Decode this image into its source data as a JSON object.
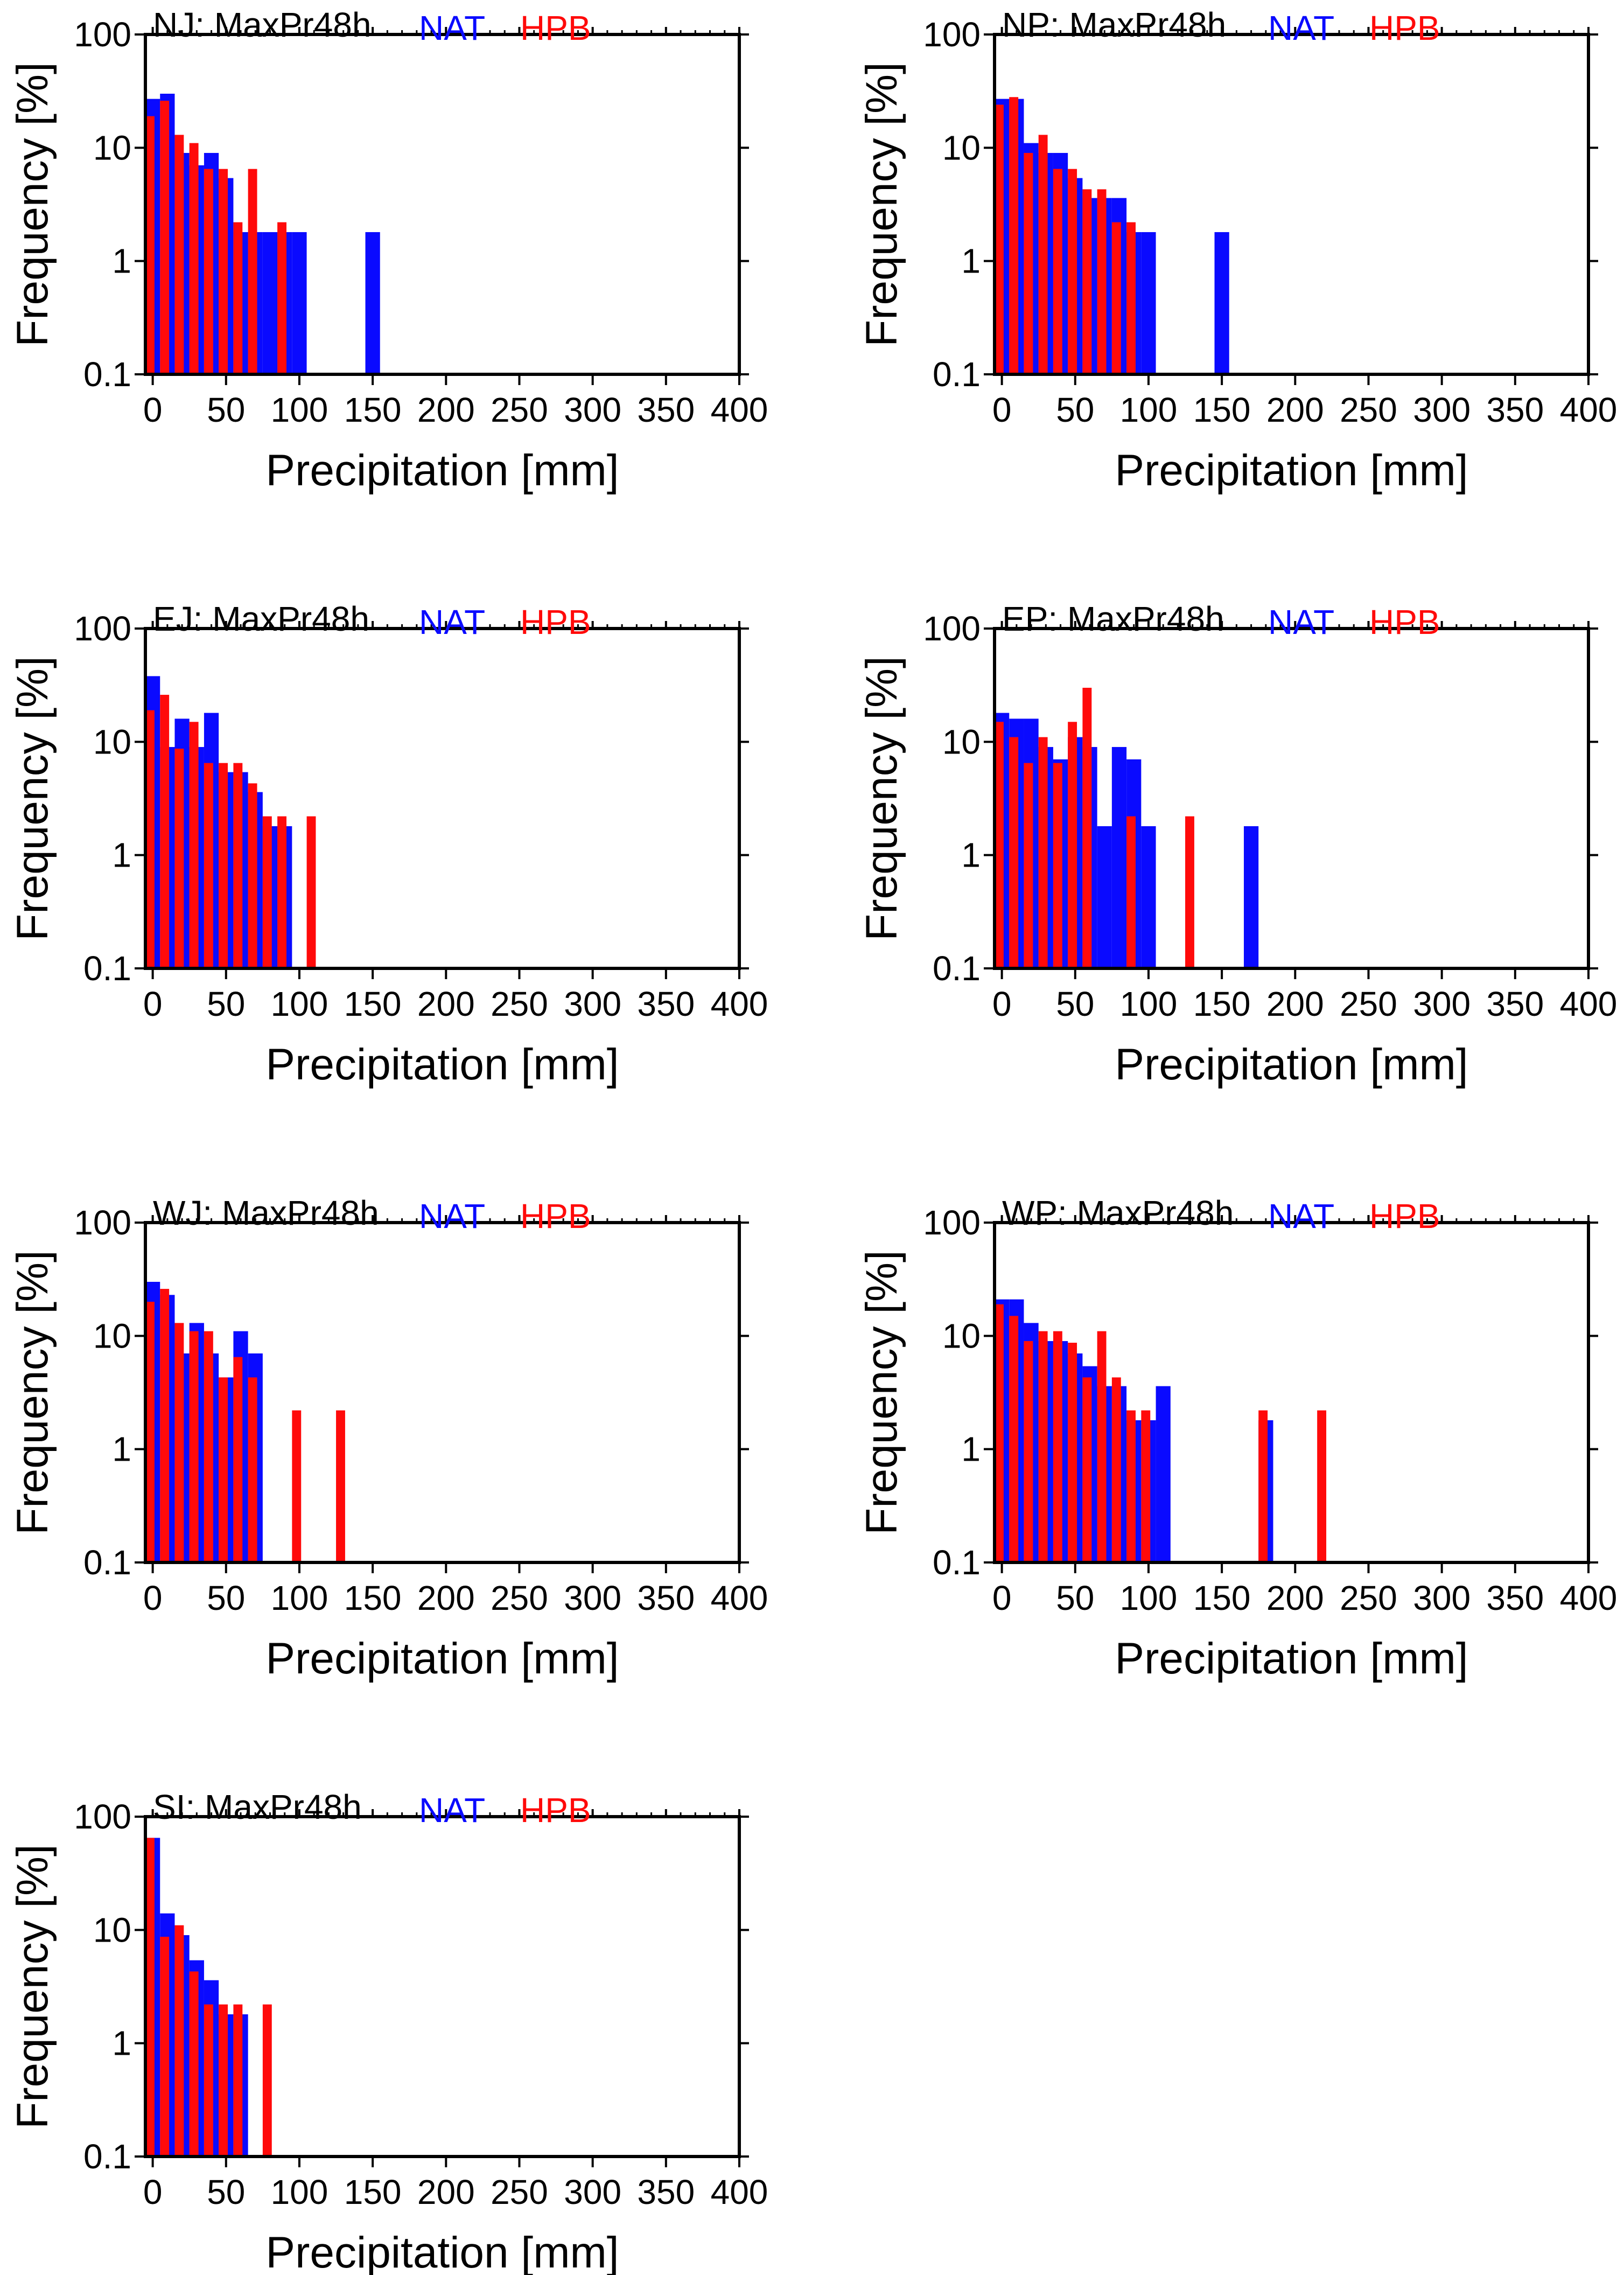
{
  "colors": {
    "NAT": "#0a0aff",
    "HPB": "#ff0a0a",
    "axis": "#000000",
    "background": "#ffffff"
  },
  "chart_data": [
    {
      "type": "bar",
      "panel": "NJ",
      "title": "NJ: MaxPr48h",
      "xlabel": "Precipitation [mm]",
      "ylabel": "Frequency [%]",
      "xlim": [
        -5,
        400
      ],
      "ylim": [
        0.1,
        100
      ],
      "yscale": "log",
      "bin_width": 10,
      "xticks": [
        "0",
        "50",
        "100",
        "150",
        "200",
        "250",
        "300",
        "350",
        "400"
      ],
      "yticks": [
        "0.1",
        "1",
        "10",
        "100"
      ],
      "legend_position": "top",
      "series": [
        {
          "name": "NAT",
          "color": "#0a0aff",
          "points": [
            [
              0,
              27
            ],
            [
              10,
              30
            ],
            [
              20,
              9
            ],
            [
              30,
              7
            ],
            [
              40,
              9
            ],
            [
              50,
              5.4
            ],
            [
              60,
              1.8
            ],
            [
              70,
              1.8
            ],
            [
              80,
              1.8
            ],
            [
              90,
              1.8
            ],
            [
              100,
              1.8
            ],
            [
              150,
              1.8
            ]
          ]
        },
        {
          "name": "HPB",
          "color": "#ff0a0a",
          "points": [
            [
              0,
              19
            ],
            [
              10,
              26
            ],
            [
              20,
              13
            ],
            [
              30,
              11
            ],
            [
              40,
              6.5
            ],
            [
              50,
              6.5
            ],
            [
              60,
              2.2
            ],
            [
              70,
              6.5
            ],
            [
              90,
              2.2
            ]
          ]
        }
      ]
    },
    {
      "type": "bar",
      "panel": "NP",
      "title": "NP: MaxPr48h",
      "xlabel": "Precipitation [mm]",
      "ylabel": "Frequency [%]",
      "xlim": [
        -5,
        400
      ],
      "ylim": [
        0.1,
        100
      ],
      "yscale": "log",
      "bin_width": 10,
      "xticks": [
        "0",
        "50",
        "100",
        "150",
        "200",
        "250",
        "300",
        "350",
        "400"
      ],
      "yticks": [
        "0.1",
        "1",
        "10",
        "100"
      ],
      "legend_position": "top",
      "series": [
        {
          "name": "NAT",
          "color": "#0a0aff",
          "points": [
            [
              0,
              27
            ],
            [
              10,
              27
            ],
            [
              20,
              11
            ],
            [
              30,
              9
            ],
            [
              40,
              9
            ],
            [
              50,
              5.4
            ],
            [
              60,
              3.6
            ],
            [
              70,
              3.6
            ],
            [
              80,
              3.6
            ],
            [
              90,
              1.8
            ],
            [
              100,
              1.8
            ],
            [
              150,
              1.8
            ]
          ]
        },
        {
          "name": "HPB",
          "color": "#ff0a0a",
          "points": [
            [
              0,
              24
            ],
            [
              10,
              28
            ],
            [
              20,
              9
            ],
            [
              30,
              13
            ],
            [
              40,
              6.5
            ],
            [
              50,
              6.5
            ],
            [
              60,
              4.3
            ],
            [
              70,
              4.3
            ],
            [
              80,
              2.2
            ],
            [
              90,
              2.2
            ]
          ]
        }
      ]
    },
    {
      "type": "bar",
      "panel": "EJ",
      "title": "EJ: MaxPr48h",
      "xlabel": "Precipitation [mm]",
      "ylabel": "Frequency [%]",
      "xlim": [
        -5,
        400
      ],
      "ylim": [
        0.1,
        100
      ],
      "yscale": "log",
      "bin_width": 10,
      "xticks": [
        "0",
        "50",
        "100",
        "150",
        "200",
        "250",
        "300",
        "350",
        "400"
      ],
      "yticks": [
        "0.1",
        "1",
        "10",
        "100"
      ],
      "legend_position": "top",
      "series": [
        {
          "name": "NAT",
          "color": "#0a0aff",
          "points": [
            [
              0,
              38
            ],
            [
              10,
              9
            ],
            [
              20,
              16
            ],
            [
              30,
              9
            ],
            [
              40,
              18
            ],
            [
              50,
              5.4
            ],
            [
              60,
              5.4
            ],
            [
              70,
              3.6
            ],
            [
              80,
              1.8
            ],
            [
              90,
              1.8
            ]
          ]
        },
        {
          "name": "HPB",
          "color": "#ff0a0a",
          "points": [
            [
              0,
              19
            ],
            [
              10,
              26
            ],
            [
              20,
              8.7
            ],
            [
              30,
              15
            ],
            [
              40,
              6.5
            ],
            [
              50,
              6.5
            ],
            [
              60,
              6.5
            ],
            [
              70,
              4.3
            ],
            [
              80,
              2.2
            ],
            [
              90,
              2.2
            ],
            [
              110,
              2.2
            ]
          ]
        }
      ]
    },
    {
      "type": "bar",
      "panel": "EP",
      "title": "EP: MaxPr48h",
      "xlabel": "Precipitation [mm]",
      "ylabel": "Frequency [%]",
      "xlim": [
        -5,
        400
      ],
      "ylim": [
        0.1,
        100
      ],
      "yscale": "log",
      "bin_width": 10,
      "xticks": [
        "0",
        "50",
        "100",
        "150",
        "200",
        "250",
        "300",
        "350",
        "400"
      ],
      "yticks": [
        "0.1",
        "1",
        "10",
        "100"
      ],
      "legend_position": "top",
      "series": [
        {
          "name": "NAT",
          "color": "#0a0aff",
          "points": [
            [
              0,
              18
            ],
            [
              10,
              16
            ],
            [
              20,
              16
            ],
            [
              30,
              9
            ],
            [
              40,
              7
            ],
            [
              50,
              11
            ],
            [
              60,
              9
            ],
            [
              70,
              1.8
            ],
            [
              80,
              9
            ],
            [
              90,
              7
            ],
            [
              100,
              1.8
            ],
            [
              170,
              1.8
            ]
          ]
        },
        {
          "name": "HPB",
          "color": "#ff0a0a",
          "points": [
            [
              0,
              15
            ],
            [
              10,
              11
            ],
            [
              20,
              6.5
            ],
            [
              30,
              11
            ],
            [
              40,
              6.5
            ],
            [
              50,
              15
            ],
            [
              60,
              30
            ],
            [
              90,
              2.2
            ],
            [
              130,
              2.2
            ]
          ]
        }
      ]
    },
    {
      "type": "bar",
      "panel": "WJ",
      "title": "WJ: MaxPr48h",
      "xlabel": "Precipitation [mm]",
      "ylabel": "Frequency [%]",
      "xlim": [
        -5,
        400
      ],
      "ylim": [
        0.1,
        100
      ],
      "yscale": "log",
      "bin_width": 10,
      "xticks": [
        "0",
        "50",
        "100",
        "150",
        "200",
        "250",
        "300",
        "350",
        "400"
      ],
      "yticks": [
        "0.1",
        "1",
        "10",
        "100"
      ],
      "legend_position": "top",
      "series": [
        {
          "name": "NAT",
          "color": "#0a0aff",
          "points": [
            [
              0,
              30
            ],
            [
              10,
              23
            ],
            [
              20,
              7
            ],
            [
              30,
              13
            ],
            [
              40,
              7
            ],
            [
              50,
              4.3
            ],
            [
              60,
              11
            ],
            [
              70,
              7
            ]
          ]
        },
        {
          "name": "HPB",
          "color": "#ff0a0a",
          "points": [
            [
              0,
              20
            ],
            [
              10,
              26
            ],
            [
              20,
              13
            ],
            [
              30,
              11
            ],
            [
              40,
              11
            ],
            [
              50,
              4.3
            ],
            [
              60,
              6.5
            ],
            [
              70,
              4.3
            ],
            [
              100,
              2.2
            ],
            [
              130,
              2.2
            ]
          ]
        }
      ]
    },
    {
      "type": "bar",
      "panel": "WP",
      "title": "WP: MaxPr48h",
      "xlabel": "Precipitation [mm]",
      "ylabel": "Frequency [%]",
      "xlim": [
        -5,
        400
      ],
      "ylim": [
        0.1,
        100
      ],
      "yscale": "log",
      "bin_width": 10,
      "xticks": [
        "0",
        "50",
        "100",
        "150",
        "200",
        "250",
        "300",
        "350",
        "400"
      ],
      "yticks": [
        "0.1",
        "1",
        "10",
        "100"
      ],
      "legend_position": "top",
      "series": [
        {
          "name": "NAT",
          "color": "#0a0aff",
          "points": [
            [
              0,
              21
            ],
            [
              10,
              21
            ],
            [
              20,
              13
            ],
            [
              30,
              9
            ],
            [
              40,
              9
            ],
            [
              50,
              7
            ],
            [
              60,
              5.4
            ],
            [
              70,
              3.6
            ],
            [
              80,
              3.6
            ],
            [
              90,
              1.8
            ],
            [
              100,
              1.8
            ],
            [
              110,
              3.6
            ],
            [
              180,
              1.8
            ]
          ]
        },
        {
          "name": "HPB",
          "color": "#ff0a0a",
          "points": [
            [
              0,
              19
            ],
            [
              10,
              15
            ],
            [
              20,
              9
            ],
            [
              30,
              11
            ],
            [
              40,
              11
            ],
            [
              50,
              8.7
            ],
            [
              60,
              4.3
            ],
            [
              70,
              11
            ],
            [
              80,
              4.3
            ],
            [
              90,
              2.2
            ],
            [
              100,
              2.2
            ],
            [
              180,
              2.2
            ],
            [
              220,
              2.2
            ]
          ]
        }
      ]
    },
    {
      "type": "bar",
      "panel": "SI",
      "title": "SI: MaxPr48h",
      "xlabel": "Precipitation [mm]",
      "ylabel": "Frequency [%]",
      "xlim": [
        -5,
        400
      ],
      "ylim": [
        0.1,
        100
      ],
      "yscale": "log",
      "bin_width": 10,
      "xticks": [
        "0",
        "50",
        "100",
        "150",
        "200",
        "250",
        "300",
        "350",
        "400"
      ],
      "yticks": [
        "0.1",
        "1",
        "10",
        "100"
      ],
      "legend_position": "top",
      "series": [
        {
          "name": "NAT",
          "color": "#0a0aff",
          "points": [
            [
              0,
              65
            ],
            [
              10,
              14
            ],
            [
              20,
              9
            ],
            [
              30,
              5.4
            ],
            [
              40,
              3.6
            ],
            [
              50,
              1.8
            ],
            [
              60,
              1.8
            ]
          ]
        },
        {
          "name": "HPB",
          "color": "#ff0a0a",
          "points": [
            [
              0,
              65
            ],
            [
              10,
              8.7
            ],
            [
              20,
              11
            ],
            [
              30,
              4.3
            ],
            [
              40,
              2.2
            ],
            [
              50,
              2.2
            ],
            [
              60,
              2.2
            ],
            [
              80,
              2.2
            ]
          ]
        }
      ]
    }
  ]
}
